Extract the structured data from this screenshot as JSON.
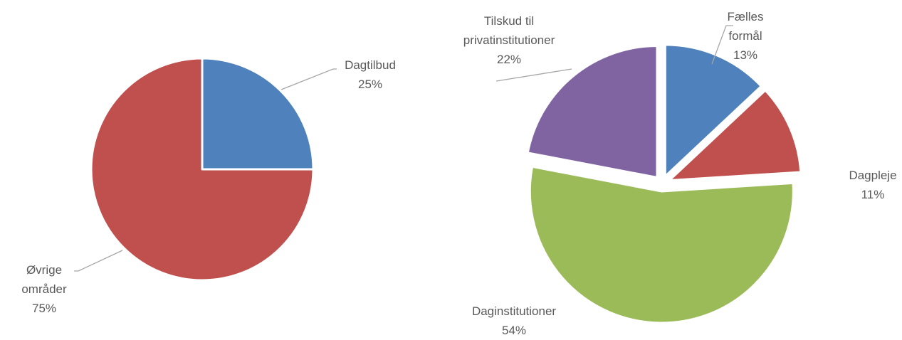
{
  "chart_data": [
    {
      "type": "pie",
      "categories": [
        "Dagtilbud",
        "Øvrige områder"
      ],
      "values": [
        25,
        75
      ],
      "value_labels": [
        "25%",
        "75%"
      ],
      "colors": [
        "#4f81bd",
        "#c0504d"
      ]
    },
    {
      "type": "pie",
      "categories": [
        "Fælles formål",
        "Dagpleje",
        "Daginstitutioner",
        "Tilskud til privatinstitutioner"
      ],
      "values": [
        13,
        11,
        54,
        22
      ],
      "value_labels": [
        "13%",
        "11%",
        "54%",
        "22%"
      ],
      "colors": [
        "#4f81bd",
        "#c0504d",
        "#9bbb59",
        "#8064a2"
      ],
      "exploded": true
    }
  ]
}
